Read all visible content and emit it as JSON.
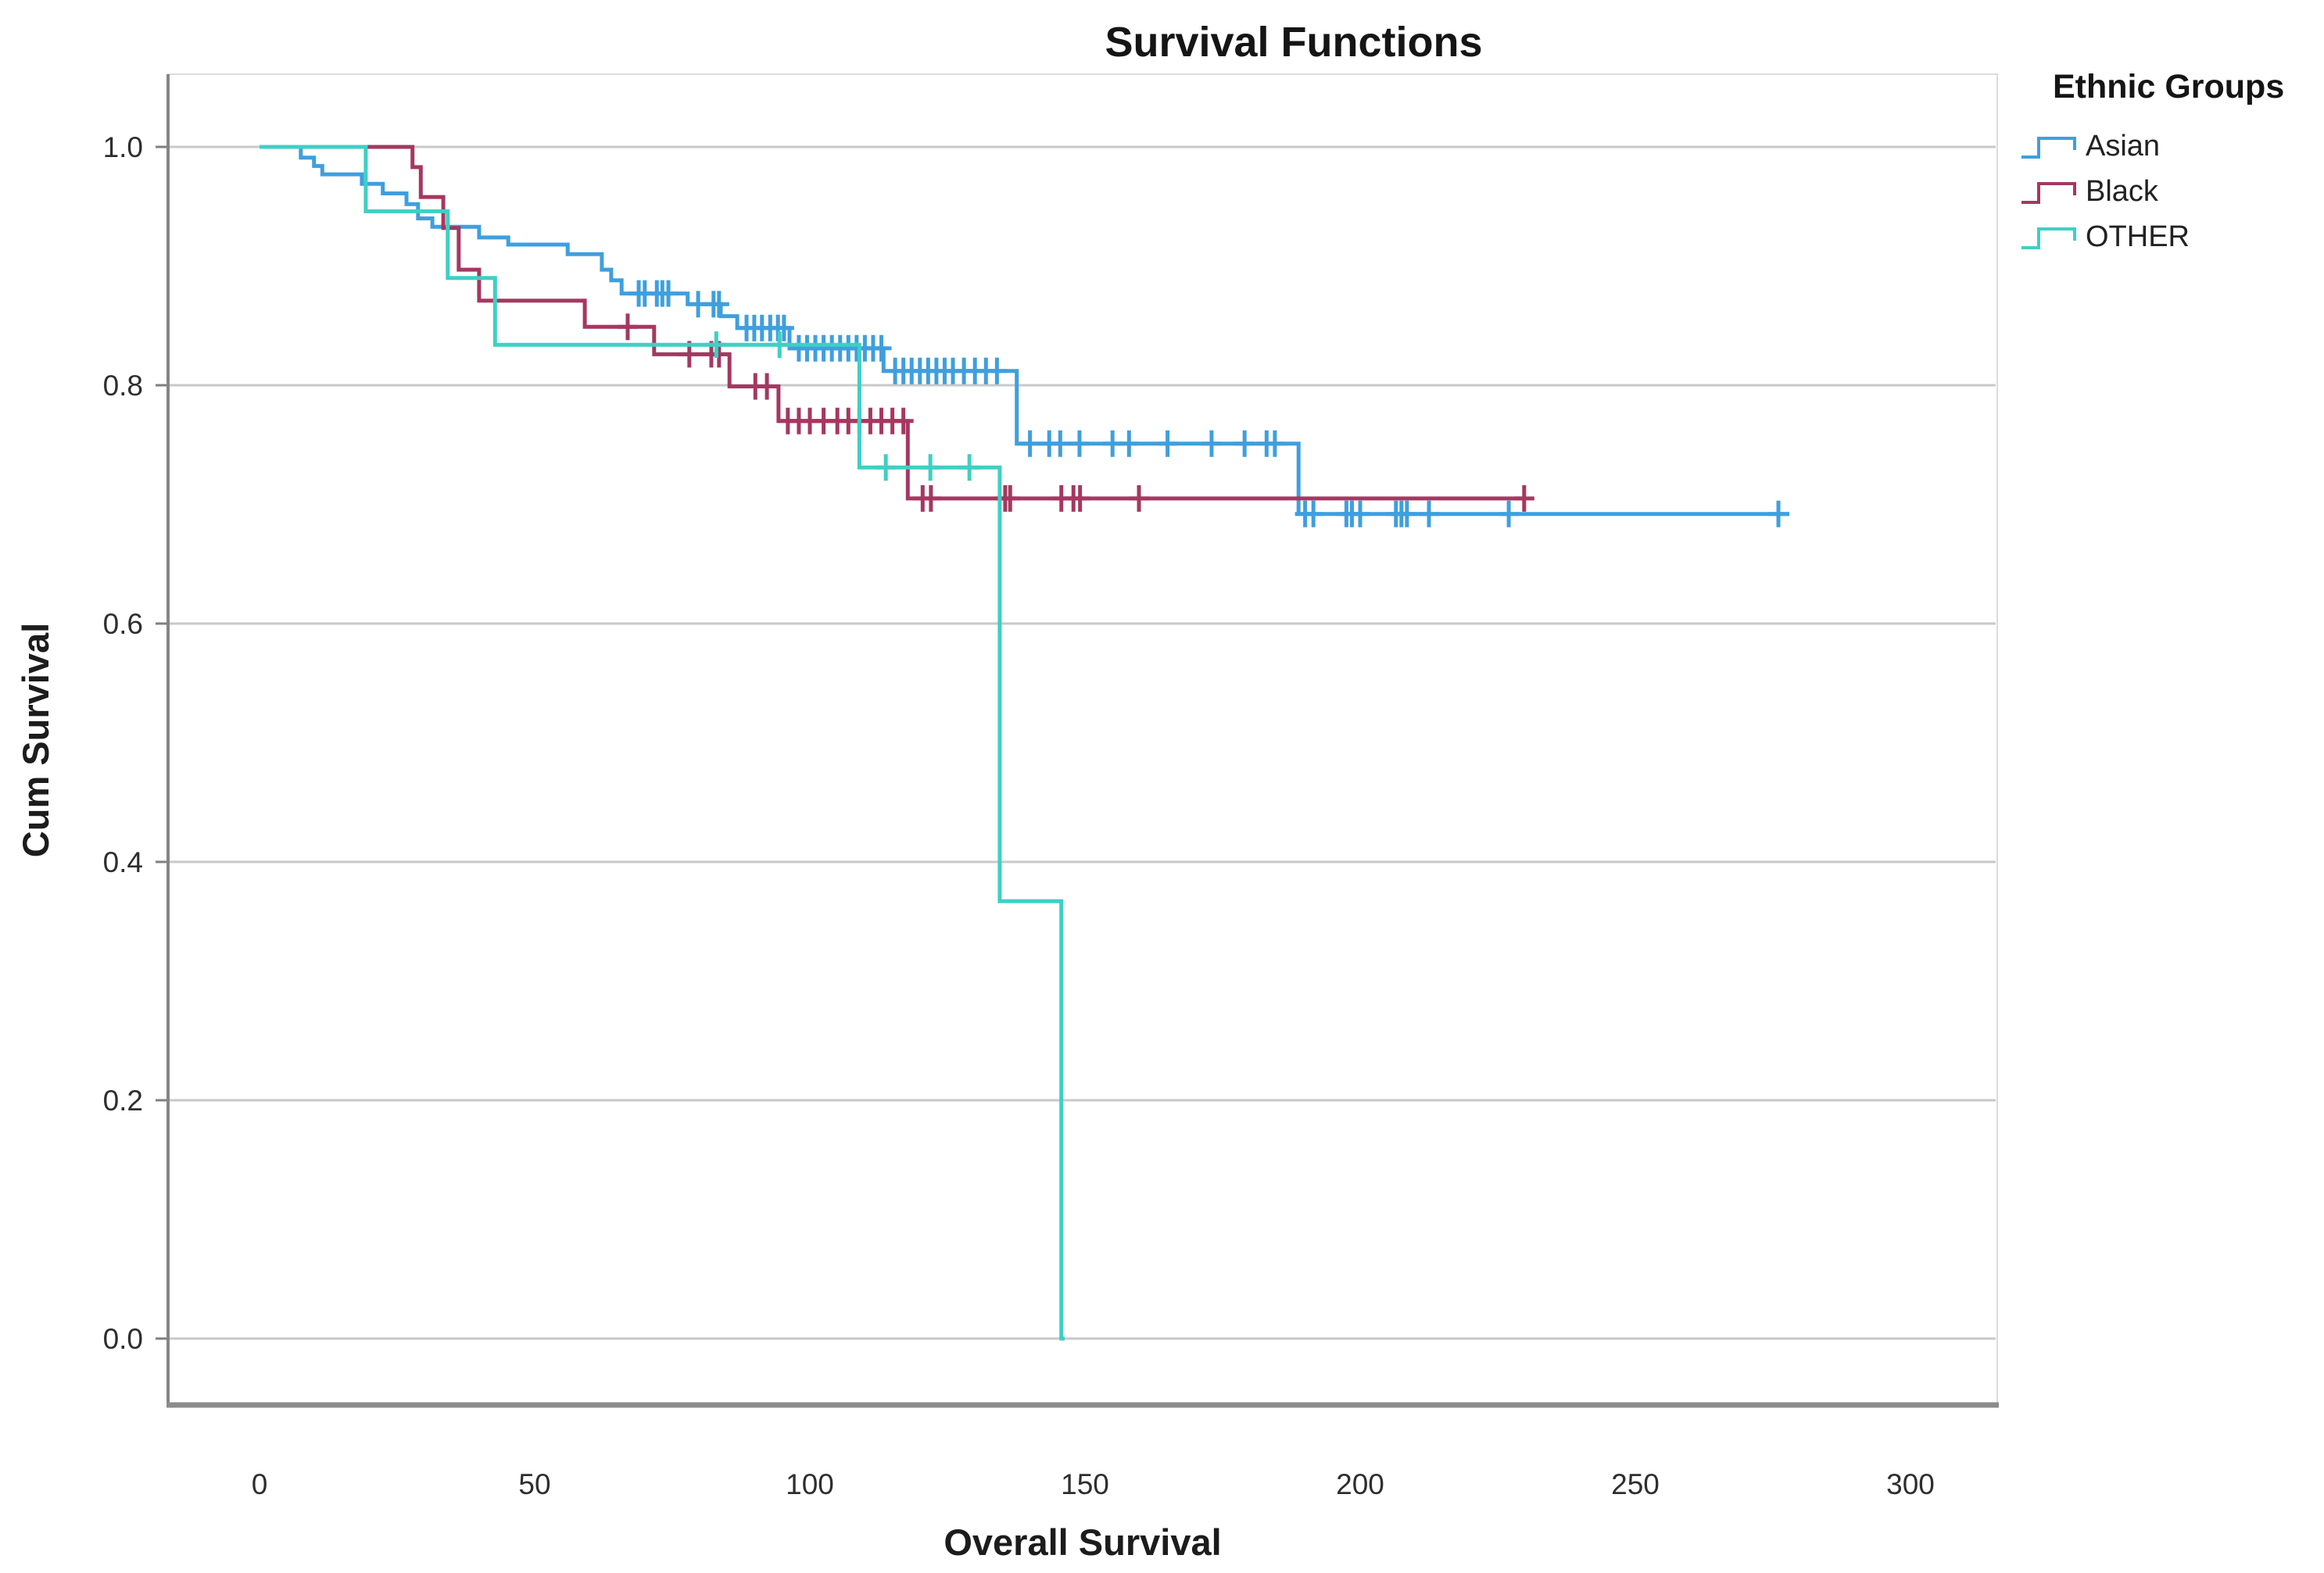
{
  "chart_data": {
    "type": "line",
    "subtype": "kaplan_meier_step_survival",
    "title": "Survival Functions",
    "xlabel": "Overall Survival",
    "ylabel": "Cum Survival",
    "legend_title": "Ethnic Groups",
    "legend_position": "top-right-outside",
    "grid": "horizontal",
    "xlim": [
      -17,
      316
    ],
    "ylim": [
      0.0,
      1.05
    ],
    "xticks": [
      0,
      50,
      100,
      150,
      200,
      250,
      300
    ],
    "yticks": [
      1.0,
      0.8,
      0.6,
      0.4,
      0.2,
      0.0
    ],
    "axis_color": "#8c8c8c",
    "gridline_color": "#c9c9c9",
    "series": [
      {
        "name": "Asian",
        "color": "#3f9fde",
        "steps": [
          [
            0,
            1.0
          ],
          [
            7.5,
            0.991
          ],
          [
            9.9,
            0.984
          ],
          [
            11.4,
            0.977
          ],
          [
            18.6,
            0.969
          ],
          [
            22.4,
            0.961
          ],
          [
            26.7,
            0.952
          ],
          [
            28.8,
            0.94
          ],
          [
            31.4,
            0.933
          ],
          [
            39.9,
            0.924
          ],
          [
            45.2,
            0.918
          ],
          [
            56,
            0.91
          ],
          [
            62.2,
            0.897
          ],
          [
            63.9,
            0.888
          ],
          [
            65.8,
            0.877
          ],
          [
            77.8,
            0.868
          ],
          [
            83.8,
            0.858
          ],
          [
            86.8,
            0.848
          ],
          [
            96.3,
            0.831
          ],
          [
            113.4,
            0.812
          ],
          [
            137.6,
            0.751
          ],
          [
            188.8,
            0.692
          ]
        ],
        "end_t": 278,
        "censors": [
          [
            68.9,
            0.877
          ],
          [
            70.0,
            0.877
          ],
          [
            72.2,
            0.877
          ],
          [
            73.2,
            0.877
          ],
          [
            74.3,
            0.877
          ],
          [
            79.7,
            0.868
          ],
          [
            82.5,
            0.868
          ],
          [
            83.5,
            0.868
          ],
          [
            88.5,
            0.848
          ],
          [
            89.9,
            0.848
          ],
          [
            91.3,
            0.848
          ],
          [
            92.8,
            0.848
          ],
          [
            94.2,
            0.848
          ],
          [
            95.3,
            0.848
          ],
          [
            98,
            0.831
          ],
          [
            99.5,
            0.831
          ],
          [
            101,
            0.831
          ],
          [
            102.5,
            0.831
          ],
          [
            104,
            0.831
          ],
          [
            105.5,
            0.831
          ],
          [
            107,
            0.831
          ],
          [
            108.5,
            0.831
          ],
          [
            110,
            0.831
          ],
          [
            111.5,
            0.831
          ],
          [
            113,
            0.831
          ],
          [
            115.5,
            0.812
          ],
          [
            117,
            0.812
          ],
          [
            118.5,
            0.812
          ],
          [
            120,
            0.812
          ],
          [
            121.5,
            0.812
          ],
          [
            123,
            0.812
          ],
          [
            124.5,
            0.812
          ],
          [
            126,
            0.812
          ],
          [
            128,
            0.812
          ],
          [
            130,
            0.812
          ],
          [
            132,
            0.812
          ],
          [
            134,
            0.812
          ],
          [
            140,
            0.751
          ],
          [
            143.5,
            0.751
          ],
          [
            145.5,
            0.751
          ],
          [
            149,
            0.751
          ],
          [
            155,
            0.751
          ],
          [
            158,
            0.751
          ],
          [
            165,
            0.751
          ],
          [
            173,
            0.751
          ],
          [
            179,
            0.751
          ],
          [
            183,
            0.751
          ],
          [
            184.5,
            0.751
          ],
          [
            190,
            0.692
          ],
          [
            191.5,
            0.692
          ],
          [
            197.5,
            0.692
          ],
          [
            198.5,
            0.692
          ],
          [
            200,
            0.692
          ],
          [
            206.5,
            0.692
          ],
          [
            207.5,
            0.692
          ],
          [
            208.5,
            0.692
          ],
          [
            212.5,
            0.692
          ],
          [
            227,
            0.692
          ],
          [
            276,
            0.692
          ]
        ]
      },
      {
        "name": "Black",
        "color": "#a53860",
        "steps": [
          [
            0,
            1.0
          ],
          [
            27.8,
            0.983
          ],
          [
            29.3,
            0.958
          ],
          [
            33.4,
            0.932
          ],
          [
            36.2,
            0.897
          ],
          [
            39.9,
            0.871
          ],
          [
            59.1,
            0.849
          ],
          [
            71.7,
            0.826
          ],
          [
            85.4,
            0.799
          ],
          [
            94.3,
            0.77
          ],
          [
            117.8,
            0.705
          ]
        ],
        "end_t": 230,
        "censors": [
          [
            66.9,
            0.849
          ],
          [
            78.1,
            0.826
          ],
          [
            82.1,
            0.826
          ],
          [
            83.5,
            0.826
          ],
          [
            90.1,
            0.799
          ],
          [
            92.2,
            0.799
          ],
          [
            96,
            0.77
          ],
          [
            98,
            0.77
          ],
          [
            100,
            0.77
          ],
          [
            102.5,
            0.77
          ],
          [
            105,
            0.77
          ],
          [
            107,
            0.77
          ],
          [
            109,
            0.77
          ],
          [
            111,
            0.77
          ],
          [
            113,
            0.77
          ],
          [
            115,
            0.77
          ],
          [
            117,
            0.77
          ],
          [
            120.5,
            0.705
          ],
          [
            122,
            0.705
          ],
          [
            135.5,
            0.705
          ],
          [
            136.4,
            0.705
          ],
          [
            145.7,
            0.705
          ],
          [
            147.9,
            0.705
          ],
          [
            149.1,
            0.705
          ],
          [
            159.8,
            0.705
          ],
          [
            229.8,
            0.705
          ]
        ]
      },
      {
        "name": "OTHER",
        "color": "#3ed0c4",
        "steps": [
          [
            0,
            1.0
          ],
          [
            19.3,
            0.946
          ],
          [
            34.2,
            0.89
          ],
          [
            42.8,
            0.834
          ],
          [
            109,
            0.731
          ],
          [
            134.5,
            0.367
          ],
          [
            145.7,
            0.0
          ]
        ],
        "end_t": 146.3,
        "censors": [
          [
            83,
            0.834
          ],
          [
            94.5,
            0.834
          ],
          [
            113.8,
            0.731
          ],
          [
            121.9,
            0.731
          ],
          [
            129.0,
            0.731
          ]
        ]
      }
    ]
  }
}
